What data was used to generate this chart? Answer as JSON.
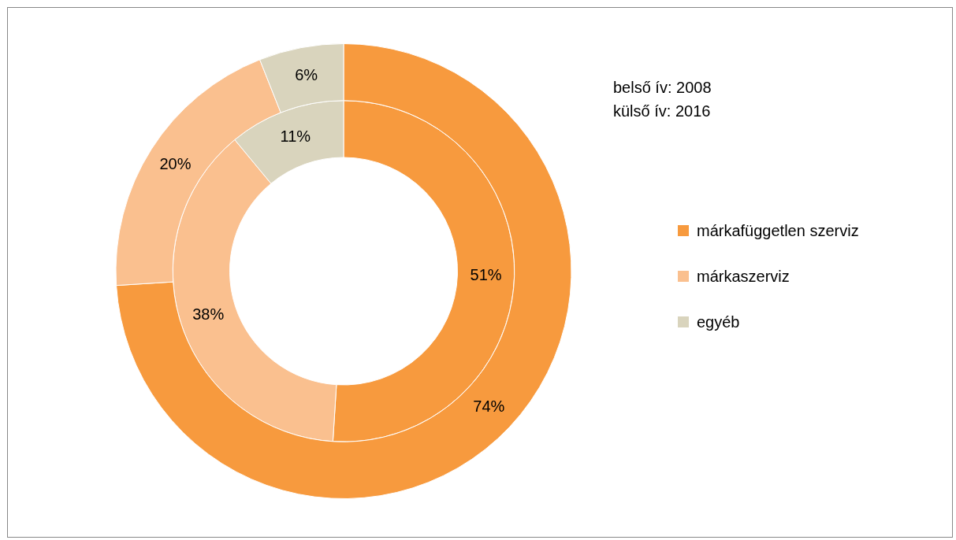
{
  "chart_data": {
    "type": "donut",
    "categories": [
      "márkafüggetlen szerviz",
      "márkaszerviz",
      "egyéb"
    ],
    "colors": [
      "#f79a3e",
      "#fac08f",
      "#d9d4bd"
    ],
    "series": [
      {
        "values": [
          51,
          38,
          11
        ],
        "value_labels": [
          "51%",
          "38%",
          "11%"
        ]
      },
      {
        "values": [
          74,
          20,
          6
        ],
        "value_labels": [
          "74%",
          "20%",
          "6%"
        ]
      }
    ],
    "annotations": [
      "belső ív: 2008",
      "külső ív: 2016"
    ],
    "legend": "right"
  }
}
